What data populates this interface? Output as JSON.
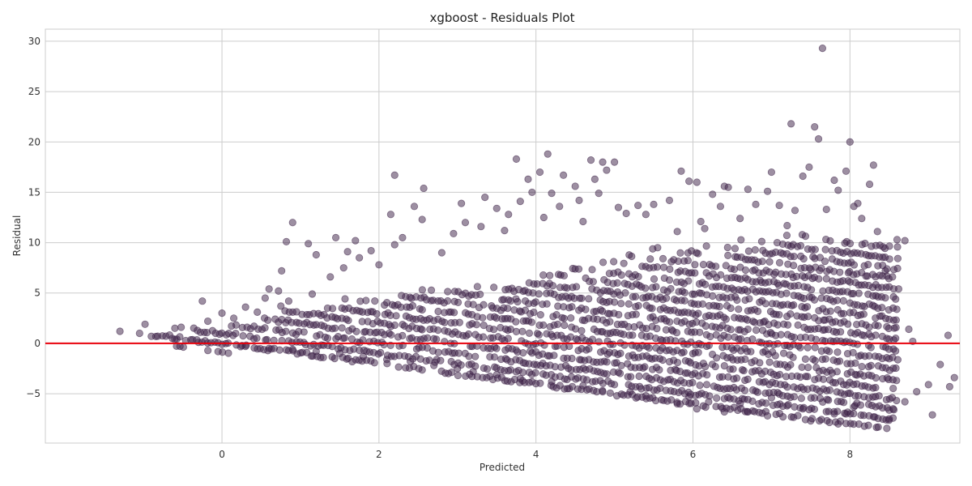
{
  "chart_data": {
    "type": "scatter",
    "title": "xgboost - Residuals Plot",
    "xlabel": "Predicted",
    "ylabel": "Residual",
    "xlim": [
      -2.25,
      9.4
    ],
    "ylim": [
      -9.9,
      31.2
    ],
    "x_ticks": [
      0,
      2,
      4,
      6,
      8
    ],
    "y_ticks": [
      -5,
      0,
      5,
      10,
      15,
      20,
      25,
      30
    ],
    "x_tick_labels": [
      "0",
      "2",
      "4",
      "6",
      "8"
    ],
    "y_tick_labels": [
      "−5",
      "0",
      "5",
      "10",
      "15",
      "20",
      "25",
      "30"
    ],
    "grid": true,
    "legend": "none",
    "point_color": "#3b1f45",
    "reference_line": {
      "y": 0,
      "color": "#e8000b"
    },
    "series": [
      {
        "values_note": "",
        "points": [
          [
            -1.3,
            1.2
          ],
          [
            -1.05,
            1.0
          ],
          [
            -0.98,
            1.9
          ],
          [
            -0.6,
            1.5
          ],
          [
            -0.52,
            1.6
          ],
          [
            -0.25,
            4.2
          ],
          [
            -0.18,
            2.2
          ],
          [
            0.0,
            3.0
          ],
          [
            0.15,
            2.5
          ],
          [
            0.3,
            3.6
          ],
          [
            0.45,
            3.1
          ],
          [
            0.55,
            4.5
          ],
          [
            0.6,
            5.4
          ],
          [
            0.72,
            5.2
          ],
          [
            0.75,
            3.7
          ],
          [
            0.85,
            4.2
          ],
          [
            0.9,
            12.0
          ],
          [
            0.82,
            10.1
          ],
          [
            0.76,
            7.2
          ],
          [
            1.1,
            9.9
          ],
          [
            1.15,
            4.9
          ],
          [
            1.2,
            8.8
          ],
          [
            1.38,
            6.6
          ],
          [
            1.45,
            10.5
          ],
          [
            1.55,
            7.5
          ],
          [
            1.6,
            9.1
          ],
          [
            1.7,
            10.2
          ],
          [
            1.75,
            8.5
          ],
          [
            1.9,
            9.2
          ],
          [
            2.0,
            7.8
          ],
          [
            2.15,
            12.8
          ],
          [
            2.2,
            16.7
          ],
          [
            2.2,
            9.8
          ],
          [
            2.3,
            10.5
          ],
          [
            2.45,
            13.6
          ],
          [
            2.55,
            12.3
          ],
          [
            2.57,
            15.4
          ],
          [
            2.8,
            9.0
          ],
          [
            2.95,
            10.9
          ],
          [
            3.05,
            13.9
          ],
          [
            3.1,
            12.0
          ],
          [
            3.3,
            11.6
          ],
          [
            3.35,
            14.5
          ],
          [
            3.5,
            13.4
          ],
          [
            3.6,
            11.2
          ],
          [
            3.65,
            12.8
          ],
          [
            3.75,
            18.3
          ],
          [
            3.8,
            14.1
          ],
          [
            3.9,
            16.3
          ],
          [
            3.95,
            15.0
          ],
          [
            4.05,
            17.0
          ],
          [
            4.1,
            12.5
          ],
          [
            4.15,
            18.8
          ],
          [
            4.2,
            14.9
          ],
          [
            4.3,
            13.6
          ],
          [
            4.35,
            16.7
          ],
          [
            4.5,
            15.6
          ],
          [
            4.55,
            14.2
          ],
          [
            4.6,
            12.1
          ],
          [
            4.7,
            18.2
          ],
          [
            4.75,
            16.3
          ],
          [
            4.8,
            14.9
          ],
          [
            4.85,
            18.0
          ],
          [
            4.9,
            17.2
          ],
          [
            5.0,
            18.0
          ],
          [
            5.05,
            13.5
          ],
          [
            5.15,
            12.9
          ],
          [
            5.3,
            13.7
          ],
          [
            5.4,
            12.8
          ],
          [
            5.5,
            13.8
          ],
          [
            5.55,
            9.5
          ],
          [
            5.7,
            14.2
          ],
          [
            5.8,
            11.1
          ],
          [
            5.85,
            17.1
          ],
          [
            5.95,
            16.1
          ],
          [
            6.05,
            16.0
          ],
          [
            6.1,
            12.1
          ],
          [
            6.15,
            11.4
          ],
          [
            6.25,
            14.8
          ],
          [
            6.35,
            13.6
          ],
          [
            6.4,
            15.6
          ],
          [
            6.45,
            15.5
          ],
          [
            6.6,
            12.4
          ],
          [
            6.7,
            15.3
          ],
          [
            6.8,
            13.8
          ],
          [
            6.95,
            15.1
          ],
          [
            7.0,
            17.0
          ],
          [
            7.1,
            13.7
          ],
          [
            7.2,
            11.7
          ],
          [
            7.25,
            21.8
          ],
          [
            7.3,
            13.2
          ],
          [
            7.4,
            16.6
          ],
          [
            7.48,
            17.5
          ],
          [
            7.55,
            21.5
          ],
          [
            7.6,
            20.3
          ],
          [
            7.65,
            29.3
          ],
          [
            7.7,
            13.3
          ],
          [
            7.8,
            16.2
          ],
          [
            7.85,
            15.2
          ],
          [
            7.95,
            17.1
          ],
          [
            8.0,
            20.0
          ],
          [
            8.05,
            13.6
          ],
          [
            8.1,
            13.9
          ],
          [
            8.15,
            12.4
          ],
          [
            8.25,
            15.8
          ],
          [
            8.3,
            17.7
          ],
          [
            8.35,
            11.1
          ],
          [
            8.45,
            7.2
          ],
          [
            8.5,
            5.6
          ],
          [
            8.55,
            3.5
          ],
          [
            8.6,
            10.3
          ],
          [
            8.62,
            5.4
          ],
          [
            8.7,
            10.2
          ],
          [
            8.75,
            1.4
          ],
          [
            8.8,
            0.2
          ],
          [
            8.85,
            -4.8
          ],
          [
            9.0,
            -4.1
          ],
          [
            9.05,
            -7.1
          ],
          [
            9.15,
            -2.1
          ],
          [
            9.25,
            0.8
          ],
          [
            9.27,
            -4.3
          ],
          [
            9.33,
            -3.4
          ],
          [
            8.7,
            -5.8
          ],
          [
            8.55,
            -6.5
          ],
          [
            8.5,
            -7.5
          ],
          [
            8.3,
            -7.3
          ],
          [
            8.05,
            -6.3
          ],
          [
            7.95,
            -7.0
          ],
          [
            7.85,
            -8.0
          ],
          [
            7.8,
            -7.0
          ],
          [
            7.5,
            -7.7
          ],
          [
            7.4,
            -6.5
          ],
          [
            7.2,
            -6.2
          ],
          [
            7.0,
            -5.4
          ],
          [
            6.95,
            -7.2
          ],
          [
            6.7,
            -6.8
          ],
          [
            6.6,
            -6.0
          ],
          [
            6.4,
            -6.8
          ],
          [
            6.2,
            -5.8
          ],
          [
            6.05,
            -6.5
          ],
          [
            5.95,
            -5.3
          ],
          [
            5.8,
            -6.0
          ],
          [
            5.6,
            -5.6
          ],
          [
            5.4,
            -5.2
          ],
          [
            5.2,
            -4.8
          ],
          [
            5.0,
            -4.1
          ],
          [
            4.85,
            -4.8
          ],
          [
            4.6,
            -4.2
          ],
          [
            4.4,
            -4.5
          ],
          [
            4.2,
            -3.8
          ],
          [
            4.0,
            -4.0
          ],
          [
            3.8,
            -3.5
          ],
          [
            3.5,
            -3.1
          ],
          [
            3.2,
            -2.8
          ],
          [
            3.0,
            -2.5
          ],
          [
            2.7,
            -2.2
          ],
          [
            2.4,
            -1.8
          ],
          [
            2.1,
            -1.6
          ],
          [
            1.8,
            -1.3
          ],
          [
            1.5,
            -1.0
          ],
          [
            1.2,
            -0.8
          ],
          [
            0.9,
            -0.6
          ],
          [
            0.6,
            -0.5
          ],
          [
            0.3,
            -0.3
          ],
          [
            0.0,
            -0.1
          ],
          [
            -0.3,
            0.1
          ],
          [
            -0.6,
            0.4
          ],
          [
            -0.9,
            0.7
          ]
        ]
      }
    ]
  }
}
